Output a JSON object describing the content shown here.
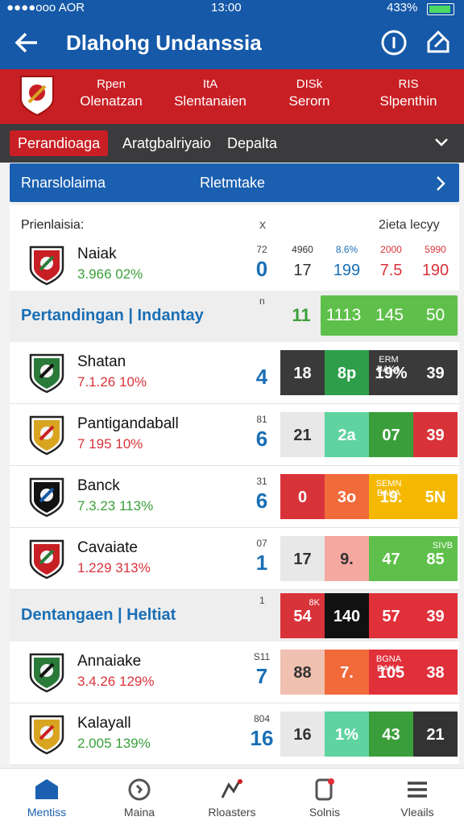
{
  "status": {
    "carrier": "●●●●ooo AOR",
    "time": "13:00",
    "battery": "433%"
  },
  "appbar": {
    "title": "Dlahohg Undanssia"
  },
  "header_stats": [
    {
      "top": "Rpen",
      "bottom": "Olenatzan"
    },
    {
      "top": "ItA",
      "bottom": "Slentanaien"
    },
    {
      "top": "DISk",
      "bottom": "Serorn"
    },
    {
      "top": "RIS",
      "bottom": "Slpenthin"
    }
  ],
  "tabs": [
    "Perandioaga",
    "Aratgbalriyaio",
    "Depalta"
  ],
  "banner": {
    "left": "Rnarslolaima",
    "right": "Rletmtake"
  },
  "list_header": {
    "left": "Prienlaisia:",
    "mid": "x",
    "right": "2ieta lecyy"
  },
  "featured": {
    "name": "Naiak",
    "stat": "3.966 02%",
    "stat_color": "#3a9f3a",
    "small": "72",
    "number": "0",
    "cells": [
      {
        "top": "4960",
        "value": "17",
        "color": "#333333"
      },
      {
        "top": "8.6%",
        "value": "199",
        "color": "#1a6fb5"
      },
      {
        "top": "2000",
        "value": "7.5",
        "color": "#d9333a"
      },
      {
        "top": "5990",
        "value": "190",
        "color": "#d9333a"
      }
    ]
  },
  "rows": [
    {
      "kind": "section",
      "title": "Pertandingan | Indantay",
      "small": "n",
      "number": "11",
      "box_color": "#5ec04a",
      "cells": [
        "1113",
        "145",
        "50"
      ]
    },
    {
      "kind": "team",
      "name": "Shatan",
      "stat": "7.1.26 10%",
      "stat_color": "#d9333a",
      "number": "4",
      "cells": [
        {
          "value": "18",
          "color": "#3a3a3a"
        },
        {
          "value": "8p",
          "color": "#2e9e4a"
        },
        {
          "top": "ERM BAKA",
          "value": "19%",
          "color": "#3a3a3a"
        },
        {
          "value": "39",
          "color": "#3a3a3a"
        }
      ]
    },
    {
      "kind": "team",
      "name": "Pantigandaball",
      "stat": "7 195 10%",
      "stat_color": "#d9333a",
      "small": "81",
      "number": "6",
      "cells": [
        {
          "value": "21",
          "color": "#e8e8e8"
        },
        {
          "value": "2a",
          "color": "#5fd3a0"
        },
        {
          "value": "07",
          "color": "#3a9f3a"
        },
        {
          "value": "39",
          "color": "#d9333a"
        }
      ]
    },
    {
      "kind": "team",
      "name": "Banck",
      "stat": "7.3.23 113%",
      "stat_color": "#3a9f3a",
      "small": "31",
      "number": "6",
      "cells": [
        {
          "value": "0",
          "color": "#d9333a"
        },
        {
          "value": "3o",
          "color": "#f06a3a"
        },
        {
          "top": "SEMN BAKA",
          "value": "19.",
          "color": "#f5b800"
        },
        {
          "value": "5N",
          "color": "#f5b800"
        }
      ]
    },
    {
      "kind": "team",
      "name": "Cavaiate",
      "stat": "1.229 313%",
      "stat_color": "#d9333a",
      "small": "07",
      "number": "1",
      "cells": [
        {
          "value": "17",
          "color": "#e8e8e8"
        },
        {
          "value": "9.",
          "color": "#f5a8a0"
        },
        {
          "value": "47",
          "color": "#5ec04a"
        },
        {
          "top": "SIVB",
          "value": "85",
          "color": "#5ec04a"
        }
      ]
    },
    {
      "kind": "section",
      "title": "Dentangaen | Heltiat",
      "small": "1",
      "cells": [
        {
          "top": "8K",
          "value": "54",
          "color": "#d9333a"
        },
        {
          "value": "140",
          "color": "#111111"
        },
        {
          "value": "57",
          "color": "#e0303a"
        },
        {
          "value": "39",
          "color": "#e0303a"
        }
      ]
    },
    {
      "kind": "team",
      "name": "Annaiake",
      "stat": "3.4.26 129%",
      "stat_color": "#d9333a",
      "small": "S11",
      "number": "7",
      "cells": [
        {
          "value": "88",
          "color": "#f0c0b0"
        },
        {
          "value": "7.",
          "color": "#f06a3a"
        },
        {
          "top": "BGNA BAKA",
          "value": "105",
          "color": "#e0303a"
        },
        {
          "value": "38",
          "color": "#e0303a"
        }
      ]
    },
    {
      "kind": "team",
      "name": "Kalayall",
      "stat": "2.005 139%",
      "stat_color": "#3a9f3a",
      "small": "804",
      "number": "16",
      "cells": [
        {
          "value": "16",
          "color": "#e8e8e8"
        },
        {
          "value": "1%",
          "color": "#5fd3a0"
        },
        {
          "value": "43",
          "color": "#3a9f3a"
        },
        {
          "value": "21",
          "color": "#333333"
        }
      ]
    }
  ],
  "nav": [
    "Mentiss",
    "Maina",
    "Rloasters",
    "Solnis",
    "Vleails"
  ]
}
